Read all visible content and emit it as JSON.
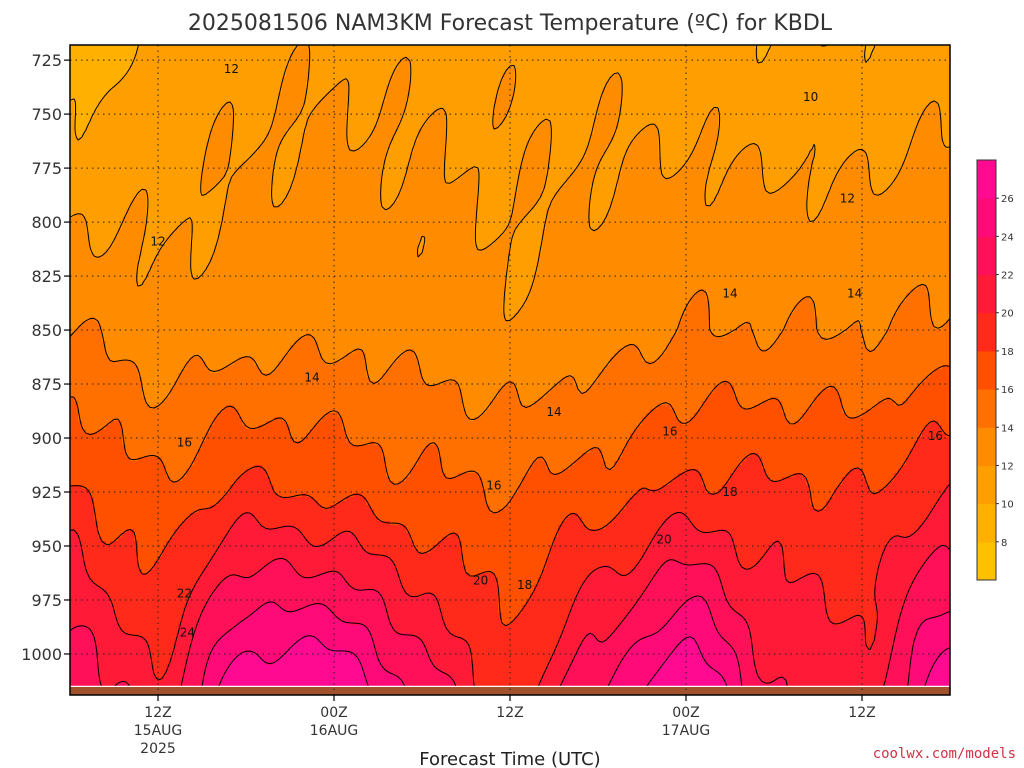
{
  "chart_data": {
    "type": "heatmap",
    "title": "2025081506 NAM3KM Forecast Temperature (ºC) for KBDL",
    "xlabel": "Forecast Time (UTC)",
    "credit": "coolwx.com/models",
    "y_axis": {
      "ticks": [
        "725",
        "750",
        "775",
        "800",
        "825",
        "850",
        "875",
        "900",
        "925",
        "950",
        "975",
        "1000"
      ],
      "range": [
        718,
        1019
      ],
      "unit": "hPa"
    },
    "x_axis": {
      "range_hours": [
        6,
        66
      ],
      "ticks": [
        {
          "hour": 12,
          "lines": [
            "12Z",
            "15AUG",
            "2025"
          ]
        },
        {
          "hour": 24,
          "lines": [
            "00Z",
            "16AUG"
          ]
        },
        {
          "hour": 36,
          "lines": [
            "12Z"
          ]
        },
        {
          "hour": 48,
          "lines": [
            "00Z",
            "17AUG"
          ]
        },
        {
          "hour": 60,
          "lines": [
            "12Z"
          ]
        }
      ]
    },
    "colorbar": {
      "levels": [
        "8",
        "10",
        "12",
        "14",
        "16",
        "18",
        "20",
        "22",
        "24",
        "26"
      ],
      "colors": [
        "#FFC000",
        "#FFB000",
        "#FF9E00",
        "#FF8C00",
        "#FF7000",
        "#FF5000",
        "#FF2A1A",
        "#FF1A38",
        "#FF1058",
        "#FF0A78",
        "#FF0A90"
      ]
    },
    "grid": "dotted",
    "contour_labels": [
      {
        "text": "12",
        "hour": 17.0,
        "p": 729
      },
      {
        "text": "10",
        "hour": 56.5,
        "p": 742
      },
      {
        "text": "12",
        "hour": 12.0,
        "p": 809
      },
      {
        "text": "12",
        "hour": 59.0,
        "p": 789
      },
      {
        "text": "14",
        "hour": 51.0,
        "p": 833
      },
      {
        "text": "14",
        "hour": 59.5,
        "p": 833
      },
      {
        "text": "14",
        "hour": 22.5,
        "p": 872
      },
      {
        "text": "14",
        "hour": 39.0,
        "p": 888
      },
      {
        "text": "16",
        "hour": 13.8,
        "p": 902
      },
      {
        "text": "16",
        "hour": 46.9,
        "p": 897
      },
      {
        "text": "16",
        "hour": 65.0,
        "p": 899
      },
      {
        "text": "16",
        "hour": 34.9,
        "p": 922
      },
      {
        "text": "18",
        "hour": 51.0,
        "p": 925
      },
      {
        "text": "18",
        "hour": 37.0,
        "p": 968
      },
      {
        "text": "20",
        "hour": 46.5,
        "p": 947
      },
      {
        "text": "20",
        "hour": 34.0,
        "p": 966
      },
      {
        "text": "22",
        "hour": 13.8,
        "p": 972
      },
      {
        "text": "24",
        "hour": 14.0,
        "p": 990
      }
    ],
    "temperature_series": [
      {
        "hour": 6,
        "t725": 9.0,
        "t850": 14.0,
        "t925": 18.5,
        "t1000": 23.0
      },
      {
        "hour": 9,
        "t725": 9.5,
        "t850": 13.5,
        "t925": 17.0,
        "t1000": 21.0
      },
      {
        "hour": 12,
        "t725": 10.5,
        "t850": 12.5,
        "t925": 16.5,
        "t1000": 20.0
      },
      {
        "hour": 18,
        "t725": 11.5,
        "t850": 13.0,
        "t925": 18.5,
        "t1000": 26.0
      },
      {
        "hour": 24,
        "t725": 11.8,
        "t850": 13.5,
        "t925": 17.5,
        "t1000": 26.5
      },
      {
        "hour": 30,
        "t725": 11.5,
        "t850": 13.0,
        "t925": 16.5,
        "t1000": 22.0
      },
      {
        "hour": 36,
        "t725": 11.5,
        "t850": 12.2,
        "t925": 16.0,
        "t1000": 18.5
      },
      {
        "hour": 42,
        "t725": 11.5,
        "t850": 13.0,
        "t925": 17.0,
        "t1000": 22.5
      },
      {
        "hour": 48,
        "t725": 11.0,
        "t850": 14.0,
        "t925": 18.5,
        "t1000": 26.5
      },
      {
        "hour": 54,
        "t725": 10.5,
        "t850": 14.0,
        "t925": 18.5,
        "t1000": 21.5
      },
      {
        "hour": 60,
        "t725": 10.5,
        "t850": 14.0,
        "t925": 18.0,
        "t1000": 20.5
      },
      {
        "hour": 66,
        "t725": 11.0,
        "t850": 14.5,
        "t925": 20.0,
        "t1000": 26.0
      }
    ],
    "surface_pressure_hpa": 1015
  }
}
